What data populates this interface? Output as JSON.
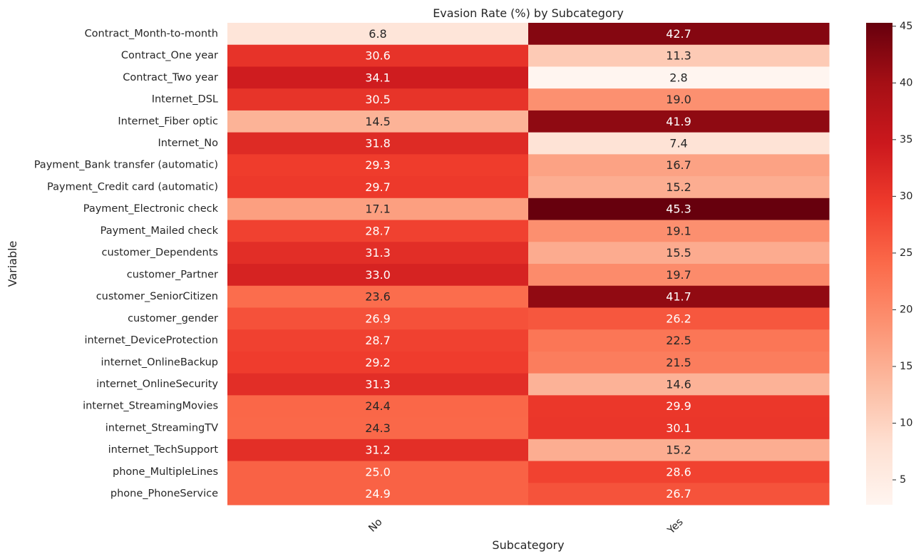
{
  "chart_data": {
    "type": "heatmap",
    "title": "Evasion Rate (%) by Subcategory",
    "xlabel": "Subcategory",
    "ylabel": "Variable",
    "columns": [
      "No",
      "Yes"
    ],
    "rows": [
      "Contract_Month-to-month",
      "Contract_One year",
      "Contract_Two year",
      "Internet_DSL",
      "Internet_Fiber optic",
      "Internet_No",
      "Payment_Bank transfer (automatic)",
      "Payment_Credit card (automatic)",
      "Payment_Electronic check",
      "Payment_Mailed check",
      "customer_Dependents",
      "customer_Partner",
      "customer_SeniorCitizen",
      "customer_gender",
      "internet_DeviceProtection",
      "internet_OnlineBackup",
      "internet_OnlineSecurity",
      "internet_StreamingMovies",
      "internet_StreamingTV",
      "internet_TechSupport",
      "phone_MultipleLines",
      "phone_PhoneService"
    ],
    "values": [
      [
        6.8,
        42.7
      ],
      [
        30.6,
        11.3
      ],
      [
        34.1,
        2.8
      ],
      [
        30.5,
        19.0
      ],
      [
        14.5,
        41.9
      ],
      [
        31.8,
        7.4
      ],
      [
        29.3,
        16.7
      ],
      [
        29.7,
        15.2
      ],
      [
        17.1,
        45.3
      ],
      [
        28.7,
        19.1
      ],
      [
        31.3,
        15.5
      ],
      [
        33.0,
        19.7
      ],
      [
        23.6,
        41.7
      ],
      [
        26.9,
        26.2
      ],
      [
        28.7,
        22.5
      ],
      [
        29.2,
        21.5
      ],
      [
        31.3,
        14.6
      ],
      [
        24.4,
        29.9
      ],
      [
        24.3,
        30.1
      ],
      [
        31.2,
        15.2
      ],
      [
        25.0,
        28.6
      ],
      [
        24.9,
        26.7
      ]
    ],
    "value_labels": [
      [
        "6.8",
        "42.7"
      ],
      [
        "30.6",
        "11.3"
      ],
      [
        "34.1",
        "2.8"
      ],
      [
        "30.5",
        "19.0"
      ],
      [
        "14.5",
        "41.9"
      ],
      [
        "31.8",
        "7.4"
      ],
      [
        "29.3",
        "16.7"
      ],
      [
        "29.7",
        "15.2"
      ],
      [
        "17.1",
        "45.3"
      ],
      [
        "28.7",
        "19.1"
      ],
      [
        "31.3",
        "15.5"
      ],
      [
        "33.0",
        "19.7"
      ],
      [
        "23.6",
        "41.7"
      ],
      [
        "26.9",
        "26.2"
      ],
      [
        "28.7",
        "22.5"
      ],
      [
        "29.2",
        "21.5"
      ],
      [
        "31.3",
        "14.6"
      ],
      [
        "24.4",
        "29.9"
      ],
      [
        "24.3",
        "30.1"
      ],
      [
        "31.2",
        "15.2"
      ],
      [
        "25.0",
        "28.6"
      ],
      [
        "24.9",
        "26.7"
      ]
    ],
    "color_scale": {
      "name": "Reds",
      "vmin": 2.8,
      "vmax": 45.3,
      "ticks": [
        "5",
        "10",
        "15",
        "20",
        "25",
        "30",
        "35",
        "40",
        "45"
      ],
      "stops": [
        "#fff5f0",
        "#fee0d2",
        "#fcbba1",
        "#fc9272",
        "#fb6a4a",
        "#ef3b2c",
        "#cb181d",
        "#a50f15",
        "#67000d"
      ]
    },
    "grid": false,
    "legend": "right"
  }
}
